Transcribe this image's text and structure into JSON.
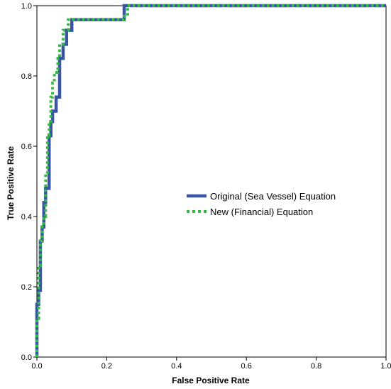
{
  "chart_data": {
    "type": "line",
    "title": "",
    "xlabel": "False Positive Rate",
    "ylabel": "True Positive Rate",
    "xlim": [
      0,
      1
    ],
    "ylim": [
      0,
      1
    ],
    "xticks": [
      "0.0",
      "0.2",
      "0.4",
      "0.6",
      "0.8",
      "1.0"
    ],
    "yticks": [
      "0.0",
      "0.2",
      "0.4",
      "0.6",
      "0.8",
      "1.0"
    ],
    "grid": false,
    "legend_position": "center-right",
    "series": [
      {
        "name": "Original (Sea Vessel) Equation",
        "color": "#3a55a4",
        "style": "solid",
        "points": [
          [
            0,
            0
          ],
          [
            0,
            0.15
          ],
          [
            0.005,
            0.15
          ],
          [
            0.005,
            0.19
          ],
          [
            0.01,
            0.19
          ],
          [
            0.01,
            0.33
          ],
          [
            0.015,
            0.33
          ],
          [
            0.015,
            0.37
          ],
          [
            0.02,
            0.37
          ],
          [
            0.02,
            0.44
          ],
          [
            0.025,
            0.44
          ],
          [
            0.025,
            0.48
          ],
          [
            0.035,
            0.48
          ],
          [
            0.035,
            0.63
          ],
          [
            0.04,
            0.63
          ],
          [
            0.04,
            0.67
          ],
          [
            0.045,
            0.67
          ],
          [
            0.045,
            0.7
          ],
          [
            0.055,
            0.7
          ],
          [
            0.055,
            0.74
          ],
          [
            0.065,
            0.74
          ],
          [
            0.065,
            0.85
          ],
          [
            0.075,
            0.85
          ],
          [
            0.075,
            0.89
          ],
          [
            0.085,
            0.89
          ],
          [
            0.085,
            0.93
          ],
          [
            0.1,
            0.93
          ],
          [
            0.1,
            0.96
          ],
          [
            0.25,
            0.96
          ],
          [
            0.25,
            1.0
          ],
          [
            1.0,
            1.0
          ]
        ]
      },
      {
        "name": "New (Financial) Equation",
        "color": "#33bb44",
        "style": "dotted",
        "points": [
          [
            0,
            0
          ],
          [
            0,
            0.11
          ],
          [
            0.005,
            0.11
          ],
          [
            0.005,
            0.26
          ],
          [
            0.01,
            0.26
          ],
          [
            0.01,
            0.33
          ],
          [
            0.015,
            0.33
          ],
          [
            0.015,
            0.37
          ],
          [
            0.02,
            0.37
          ],
          [
            0.02,
            0.4
          ],
          [
            0.025,
            0.4
          ],
          [
            0.025,
            0.52
          ],
          [
            0.03,
            0.52
          ],
          [
            0.03,
            0.63
          ],
          [
            0.035,
            0.63
          ],
          [
            0.035,
            0.67
          ],
          [
            0.04,
            0.67
          ],
          [
            0.04,
            0.74
          ],
          [
            0.045,
            0.74
          ],
          [
            0.045,
            0.78
          ],
          [
            0.05,
            0.78
          ],
          [
            0.05,
            0.81
          ],
          [
            0.06,
            0.81
          ],
          [
            0.06,
            0.85
          ],
          [
            0.065,
            0.85
          ],
          [
            0.065,
            0.89
          ],
          [
            0.075,
            0.89
          ],
          [
            0.075,
            0.93
          ],
          [
            0.09,
            0.93
          ],
          [
            0.09,
            0.96
          ],
          [
            0.25,
            0.96
          ],
          [
            0.25,
            0.97
          ],
          [
            0.26,
            0.97
          ],
          [
            0.26,
            1.0
          ],
          [
            1.0,
            1.0
          ]
        ]
      }
    ]
  }
}
